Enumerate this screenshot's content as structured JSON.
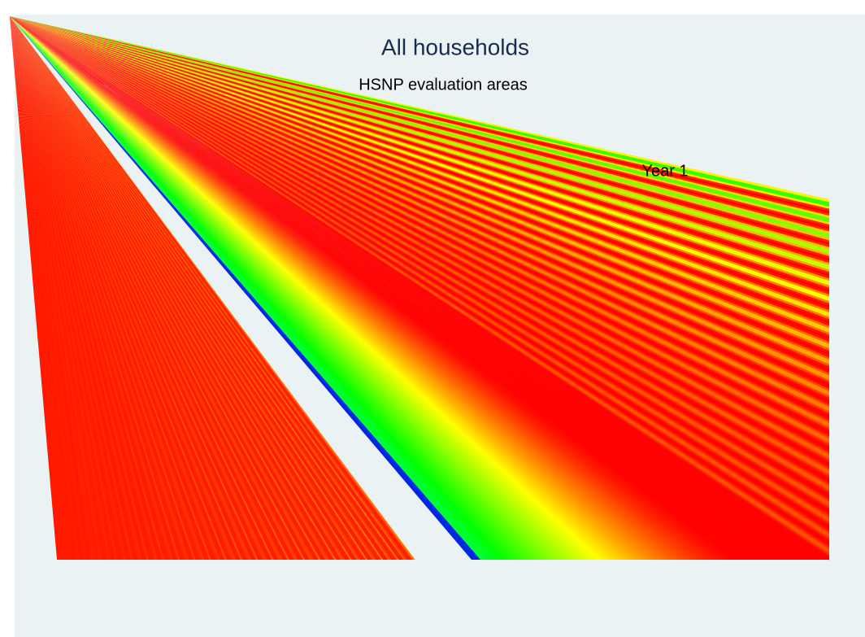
{
  "chart_data": {
    "type": "fan",
    "title": "All households",
    "subtitle": "HSNP evaluation areas",
    "annotations": [
      "Year 1"
    ]
  }
}
